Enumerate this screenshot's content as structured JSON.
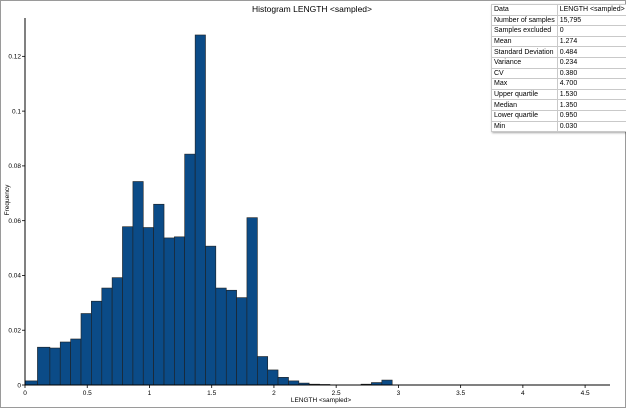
{
  "chart_data": {
    "type": "bar",
    "title": "Histogram LENGTH <sampled>",
    "xlabel": "LENGTH <sampled>",
    "ylabel": "Frequency",
    "xlim": [
      0,
      4.7
    ],
    "ylim": [
      0,
      0.134
    ],
    "bin_width": 0.0833,
    "xticks": [
      "0",
      "0.5",
      "1",
      "1.5",
      "2",
      "2.5",
      "3",
      "3.5",
      "4",
      "4.5"
    ],
    "yticks": [
      "0",
      "0.02",
      "0.04",
      "0.06",
      "0.08",
      "0.1",
      "0.12"
    ],
    "bars": [
      {
        "x0": 0.0,
        "x1": 0.1,
        "value": 0.0015
      },
      {
        "x0": 0.1,
        "x1": 0.2,
        "value": 0.0138
      },
      {
        "x0": 0.2,
        "x1": 0.283,
        "value": 0.0135
      },
      {
        "x0": 0.283,
        "x1": 0.367,
        "value": 0.0157
      },
      {
        "x0": 0.367,
        "x1": 0.45,
        "value": 0.0168
      },
      {
        "x0": 0.45,
        "x1": 0.533,
        "value": 0.0261
      },
      {
        "x0": 0.533,
        "x1": 0.617,
        "value": 0.0306
      },
      {
        "x0": 0.617,
        "x1": 0.7,
        "value": 0.0354
      },
      {
        "x0": 0.7,
        "x1": 0.783,
        "value": 0.0392
      },
      {
        "x0": 0.783,
        "x1": 0.867,
        "value": 0.0578
      },
      {
        "x0": 0.867,
        "x1": 0.95,
        "value": 0.0743
      },
      {
        "x0": 0.95,
        "x1": 1.033,
        "value": 0.0575
      },
      {
        "x0": 1.033,
        "x1": 1.117,
        "value": 0.066
      },
      {
        "x0": 1.117,
        "x1": 1.2,
        "value": 0.0537
      },
      {
        "x0": 1.2,
        "x1": 1.283,
        "value": 0.0541
      },
      {
        "x0": 1.283,
        "x1": 1.367,
        "value": 0.0843
      },
      {
        "x0": 1.367,
        "x1": 1.45,
        "value": 0.1278
      },
      {
        "x0": 1.45,
        "x1": 1.533,
        "value": 0.0507
      },
      {
        "x0": 1.533,
        "x1": 1.617,
        "value": 0.0354
      },
      {
        "x0": 1.617,
        "x1": 1.7,
        "value": 0.0346
      },
      {
        "x0": 1.7,
        "x1": 1.783,
        "value": 0.0319
      },
      {
        "x0": 1.783,
        "x1": 1.867,
        "value": 0.0611
      },
      {
        "x0": 1.867,
        "x1": 1.95,
        "value": 0.0104
      },
      {
        "x0": 1.95,
        "x1": 2.033,
        "value": 0.0055
      },
      {
        "x0": 2.033,
        "x1": 2.117,
        "value": 0.0028
      },
      {
        "x0": 2.117,
        "x1": 2.2,
        "value": 0.0015
      },
      {
        "x0": 2.2,
        "x1": 2.283,
        "value": 0.0007
      },
      {
        "x0": 2.283,
        "x1": 2.367,
        "value": 0.0003
      },
      {
        "x0": 2.367,
        "x1": 2.45,
        "value": 0.0002
      },
      {
        "x0": 2.7,
        "x1": 2.783,
        "value": 0.0003
      },
      {
        "x0": 2.783,
        "x1": 2.867,
        "value": 0.0009
      },
      {
        "x0": 2.867,
        "x1": 2.95,
        "value": 0.0018
      }
    ],
    "bar_color": "#0b4b87",
    "bar_edge_color": "#1f1f1f",
    "grid": false,
    "stats_table": [
      [
        "Data",
        "LENGTH <sampled>"
      ],
      [
        "Number of samples",
        "15,795"
      ],
      [
        "Samples excluded",
        "0"
      ],
      [
        "Mean",
        "1.274"
      ],
      [
        "Standard Deviation",
        "0.484"
      ],
      [
        "Variance",
        "0.234"
      ],
      [
        "CV",
        "0.380"
      ],
      [
        "Max",
        "4.700"
      ],
      [
        "Upper quartile",
        "1.530"
      ],
      [
        "Median",
        "1.350"
      ],
      [
        "Lower quartile",
        "0.950"
      ],
      [
        "Min",
        "0.030"
      ]
    ],
    "stats_placement": "top-right"
  }
}
